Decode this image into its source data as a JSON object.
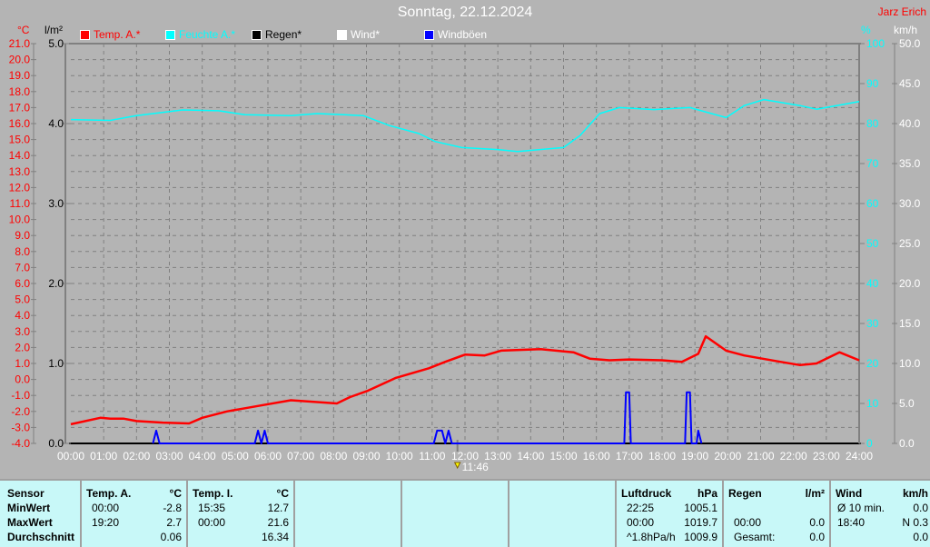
{
  "header": {
    "title": "Sonntag, 22.12.2024",
    "author": "Jarz Erich"
  },
  "legend": [
    {
      "label": "Temp. A.*",
      "color": "#ff0000"
    },
    {
      "label": "Feuchte A.*",
      "color": "#00ffff"
    },
    {
      "label": "Regen*",
      "color": "#000000"
    },
    {
      "label": "Wind*",
      "color": "#ffffff"
    },
    {
      "label": "Windböen",
      "color": "#0000ff"
    }
  ],
  "chart_data": {
    "type": "line",
    "axes": {
      "temp": {
        "unit": "°C",
        "range": [
          -4,
          21
        ],
        "ticks": [
          "21.0",
          "20.0",
          "19.0",
          "18.0",
          "17.0",
          "16.0",
          "15.0",
          "14.0",
          "13.0",
          "12.0",
          "11.0",
          "10.0",
          "9.0",
          "8.0",
          "7.0",
          "6.0",
          "5.0",
          "4.0",
          "3.0",
          "2.0",
          "1.0",
          "0.0",
          "-1.0",
          "-2.0",
          "-3.0",
          "-4.0"
        ],
        "color": "#ff0000"
      },
      "rain": {
        "unit": "l/m²",
        "range": [
          0,
          5
        ],
        "ticks": [
          "5.0",
          "4.0",
          "3.0",
          "2.0",
          "1.0",
          "0.0"
        ],
        "color": "#000000"
      },
      "humidity": {
        "unit": "%",
        "range": [
          0,
          100
        ],
        "ticks": [
          "100",
          "90",
          "80",
          "70",
          "60",
          "50",
          "40",
          "30",
          "20",
          "10",
          "0"
        ],
        "color": "#00ffff"
      },
      "wind": {
        "unit": "km/h",
        "range": [
          0,
          50
        ],
        "ticks": [
          "50.0",
          "45.0",
          "40.0",
          "35.0",
          "30.0",
          "25.0",
          "20.0",
          "15.0",
          "10.0",
          "5.0",
          "0.0"
        ],
        "color": "#ffffff"
      },
      "x": {
        "range": [
          0,
          24
        ],
        "ticks": [
          "00:00",
          "01:00",
          "02:00",
          "03:00",
          "04:00",
          "05:00",
          "06:00",
          "07:00",
          "08:00",
          "09:00",
          "10:00",
          "11:00",
          "12:00",
          "13:00",
          "14:00",
          "15:00",
          "16:00",
          "17:00",
          "18:00",
          "19:00",
          "20:00",
          "21:00",
          "22:00",
          "23:00",
          "24:00"
        ]
      }
    },
    "grid": true,
    "marker": {
      "label": "11:46",
      "time": 11.77
    },
    "series": [
      {
        "name": "Temp. A.*",
        "axis": "temp",
        "color": "#ff0000",
        "x": [
          0,
          0.9,
          1.2,
          1.6,
          2.0,
          2.8,
          3.6,
          4.0,
          4.75,
          5.3,
          5.85,
          6.7,
          7.4,
          8.1,
          8.5,
          9.05,
          9.9,
          10.9,
          11.4,
          12.0,
          12.6,
          13.1,
          14.3,
          15.3,
          15.8,
          16.4,
          17.0,
          18.0,
          18.6,
          19.1,
          19.33,
          19.95,
          20.5,
          21.6,
          22.2,
          22.7,
          23.4,
          24.0
        ],
        "y": [
          -2.8,
          -2.4,
          -2.45,
          -2.45,
          -2.6,
          -2.7,
          -2.75,
          -2.4,
          -2.0,
          -1.8,
          -1.6,
          -1.3,
          -1.4,
          -1.5,
          -1.1,
          -0.7,
          0.1,
          0.7,
          1.1,
          1.55,
          1.5,
          1.8,
          1.9,
          1.7,
          1.3,
          1.2,
          1.25,
          1.2,
          1.1,
          1.6,
          2.7,
          1.8,
          1.5,
          1.1,
          0.9,
          1.0,
          1.7,
          1.2
        ]
      },
      {
        "name": "Feuchte A.*",
        "axis": "humidity",
        "color": "#00ffff",
        "x": [
          0,
          1.2,
          2.0,
          3.4,
          4.5,
          5.3,
          6.7,
          7.5,
          8.9,
          9.7,
          10.6,
          11.1,
          11.9,
          13.0,
          13.6,
          15.0,
          15.5,
          16.1,
          16.7,
          17.75,
          18.85,
          19.95,
          20.5,
          21.1,
          22.2,
          22.7,
          24.0
        ],
        "y": [
          81,
          80.8,
          82,
          83.4,
          83.2,
          82.2,
          82,
          82.5,
          82,
          79.5,
          77.5,
          75.5,
          74,
          73.5,
          73,
          74,
          77,
          82.5,
          84,
          83.5,
          84,
          81.5,
          84.5,
          86,
          84.5,
          83.6,
          85.5
        ]
      },
      {
        "name": "Windböen",
        "axis": "wind",
        "color": "#0000ff",
        "x": [
          2.5,
          2.6,
          2.7,
          5.6,
          5.7,
          5.8,
          5.9,
          6.0,
          11.05,
          11.15,
          11.3,
          11.4,
          11.5,
          11.6,
          16.85,
          16.9,
          17.0,
          17.05,
          18.7,
          18.75,
          18.85,
          18.9,
          19.05,
          19.1,
          19.2
        ],
        "y": [
          0,
          1.6,
          0,
          0,
          1.6,
          0,
          1.6,
          0,
          0,
          1.6,
          1.6,
          0,
          1.6,
          0,
          0,
          6.4,
          6.4,
          0,
          0,
          6.4,
          6.4,
          0,
          0,
          1.6,
          0
        ]
      }
    ]
  },
  "table": {
    "sensor": {
      "header": "Sensor",
      "rows": [
        "MinWert",
        "MaxWert",
        "Durchschnitt"
      ]
    },
    "temp_a": {
      "header": "Temp. A.",
      "unit": "°C",
      "times": [
        "00:00",
        "19:20",
        ""
      ],
      "values": [
        "-2.8",
        "2.7",
        "0.06"
      ]
    },
    "temp_i": {
      "header": "Temp. I.",
      "unit": "°C",
      "times": [
        "15:35",
        "00:00",
        ""
      ],
      "values": [
        "12.7",
        "21.6",
        "16.34"
      ]
    },
    "pressure": {
      "header": "Luftdruck",
      "unit": "hPa",
      "times": [
        "22:25",
        "00:00",
        "^1.8hPa/h"
      ],
      "values": [
        "1005.1",
        "1019.7",
        "1009.9"
      ]
    },
    "rain": {
      "header": "Regen",
      "unit": "l/m²",
      "times": [
        "",
        "00:00",
        "Gesamt:"
      ],
      "values": [
        "",
        "0.0",
        "0.0"
      ]
    },
    "wind": {
      "header": "Wind",
      "unit": "km/h",
      "times": [
        "Ø 10 min.",
        "18:40",
        ""
      ],
      "values": [
        "0.0",
        "N 0.3",
        "0.0"
      ]
    }
  }
}
